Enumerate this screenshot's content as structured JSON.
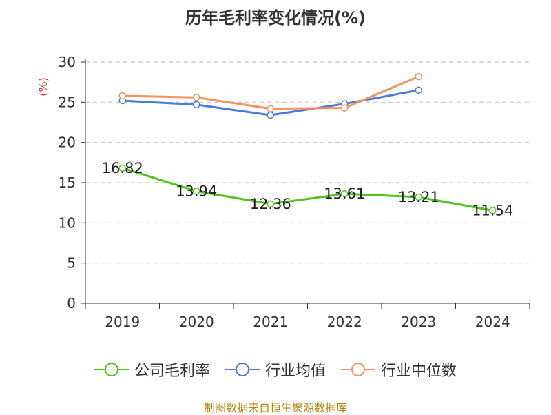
{
  "title": "历年毛利率变化情况(%)",
  "source": "制图数据来自恒生聚源数据库",
  "chart_data": {
    "type": "line",
    "title": "历年毛利率变化情况(%)",
    "ylabel": "(%)",
    "ylim": [
      0,
      30
    ],
    "yticks": [
      0,
      5,
      10,
      15,
      20,
      25,
      30
    ],
    "grid": true,
    "legend_position": "bottom",
    "categories": [
      "2019",
      "2020",
      "2021",
      "2022",
      "2023",
      "2024"
    ],
    "series": [
      {
        "name": "公司毛利率",
        "color": "#52c41a",
        "values": [
          16.82,
          13.94,
          12.36,
          13.61,
          13.21,
          11.54
        ],
        "show_labels": true
      },
      {
        "name": "行业均值",
        "color": "#4b7bd8",
        "values": [
          25.2,
          24.7,
          23.4,
          24.8,
          26.5,
          null
        ],
        "show_labels": false
      },
      {
        "name": "行业中位数",
        "color": "#f7925e",
        "values": [
          25.8,
          25.6,
          24.2,
          24.3,
          28.2,
          null
        ],
        "show_labels": false
      }
    ]
  }
}
